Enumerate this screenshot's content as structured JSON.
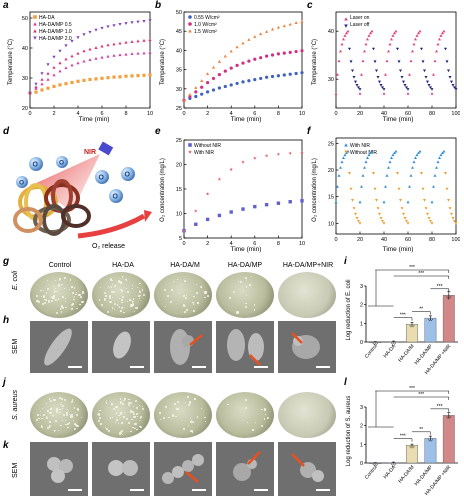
{
  "panel_labels": [
    "a",
    "b",
    "c",
    "d",
    "e",
    "f",
    "g",
    "h",
    "i",
    "j",
    "k",
    "l"
  ],
  "panel_a": {
    "ylabel": "Temperature (°C)",
    "xlabel": "Time (min)",
    "legend": [
      "HA-DA",
      "HA-DA/MP 0.5",
      "HA-DA/MP 1.0",
      "HA-DA/MP 2.0"
    ],
    "yticks": [
      "20",
      "30",
      "40",
      "50"
    ],
    "xticks": [
      "0",
      "2",
      "4",
      "6",
      "8",
      "10"
    ]
  },
  "panel_b": {
    "ylabel": "Temperature (°C)",
    "xlabel": "Time (min)",
    "legend": [
      "0.55 W/cm²",
      "1.0 W/cm²",
      "1.5 W/cm²"
    ],
    "yticks": [
      "25",
      "30",
      "35",
      "40",
      "45",
      "50"
    ],
    "xticks": [
      "0",
      "2",
      "4",
      "6",
      "8",
      "10"
    ]
  },
  "panel_c": {
    "ylabel": "Temperature (°C)",
    "xlabel": "Time (min)",
    "legend": [
      "Laser on",
      "Laser off"
    ],
    "yticks": [
      "30",
      "40"
    ],
    "xticks": [
      "0",
      "20",
      "40",
      "60",
      "80",
      "100"
    ]
  },
  "panel_d": {
    "nir": "NIR",
    "o2": "O",
    "o2_sub": "2",
    "release": "O₂ release"
  },
  "panel_e": {
    "ylabel": "O₂ concentration (mg/L)",
    "xlabel": "Time (min)",
    "legend": [
      "Without NIR",
      "With NIR"
    ],
    "yticks": [
      "5",
      "10",
      "15",
      "20",
      "25"
    ],
    "xticks": [
      "0",
      "2",
      "4",
      "6",
      "8",
      "10"
    ]
  },
  "panel_f": {
    "ylabel": "O₂ concentration (mg/L)",
    "xlabel": "Time (min)",
    "legend": [
      "With NIR",
      "Without NIR"
    ],
    "yticks": [
      "10",
      "15",
      "20",
      "25"
    ],
    "xticks": [
      "0",
      "20",
      "40",
      "60",
      "80",
      "100"
    ]
  },
  "columns": [
    "Control",
    "HA-DA",
    "HA-DA/M",
    "HA-DA/MP",
    "HA-DA/MP+NIR"
  ],
  "row_ecoli": "E. coli",
  "row_saureus": "S. aureus",
  "row_sem": "SEM",
  "panel_i": {
    "ylabel": "Log reduction of E. coli",
    "categories": [
      "Control",
      "HA-DA",
      "HA-DA/M",
      "HA-DA/MP",
      "HA-DA/MP +NIR"
    ],
    "yticks": [
      "0",
      "1",
      "2",
      "3"
    ],
    "sig": [
      "***",
      "***",
      "***",
      "**",
      "***"
    ]
  },
  "panel_l": {
    "ylabel": "Log reduction of S. aureus",
    "categories": [
      "Control",
      "HA-DA",
      "HA-DA/M",
      "HA-DA/MP",
      "HA-DA/MP +NIR"
    ],
    "yticks": [
      "0",
      "1",
      "2",
      "3"
    ],
    "sig": [
      "***",
      "***",
      "***",
      "**",
      "***"
    ]
  },
  "chart_data": [
    {
      "type": "scatter",
      "panel": "a",
      "xlim": [
        0,
        10
      ],
      "ylim": [
        20,
        52
      ],
      "series": [
        {
          "name": "HA-DA",
          "color": "#f0a040",
          "x": [
            0,
            0.5,
            1,
            1.5,
            2,
            2.5,
            3,
            3.5,
            4,
            4.5,
            5,
            5.5,
            6,
            6.5,
            7,
            7.5,
            8,
            8.5,
            9,
            9.5,
            10
          ],
          "y": [
            25,
            25.3,
            26,
            26.6,
            27.2,
            27.7,
            28.1,
            28.5,
            28.9,
            29.2,
            29.5,
            29.7,
            29.9,
            30.1,
            30.3,
            30.4,
            30.6,
            30.7,
            30.8,
            30.9,
            31
          ]
        },
        {
          "name": "HA-DA/MP 0.5",
          "color": "#d040a0",
          "x": [
            0,
            0.5,
            1,
            1.5,
            2,
            2.5,
            3,
            3.5,
            4,
            4.5,
            5,
            5.5,
            6,
            6.5,
            7,
            7.5,
            8,
            8.5,
            9,
            9.5,
            10
          ],
          "y": [
            25,
            26.5,
            28,
            29.5,
            31,
            32.3,
            33.4,
            34.3,
            35,
            35.6,
            36.1,
            36.5,
            36.9,
            37.2,
            37.5,
            37.7,
            37.9,
            38.1,
            38.2,
            38.3,
            38.5
          ]
        },
        {
          "name": "HA-DA/MP 1.0",
          "color": "#e03070",
          "x": [
            0,
            0.5,
            1,
            1.5,
            2,
            2.5,
            3,
            3.5,
            4,
            4.5,
            5,
            5.5,
            6,
            6.5,
            7,
            7.5,
            8,
            8.5,
            9,
            9.5,
            10
          ],
          "y": [
            25,
            27,
            29.5,
            31.5,
            33.5,
            35,
            36.3,
            37.3,
            38.2,
            39,
            39.6,
            40.1,
            40.6,
            41,
            41.3,
            41.6,
            41.9,
            42.1,
            42.3,
            42.5,
            42.7
          ]
        },
        {
          "name": "HA-DA/MP 2.0",
          "color": "#8040c0",
          "x": [
            0,
            0.5,
            1,
            1.5,
            2,
            2.5,
            3,
            3.5,
            4,
            4.5,
            5,
            5.5,
            6,
            6.5,
            7,
            7.5,
            8,
            8.5,
            9,
            9.5,
            10
          ],
          "y": [
            25,
            28,
            31.5,
            34.5,
            37,
            39,
            40.8,
            42.3,
            43.5,
            44.5,
            45.3,
            46,
            46.6,
            47.1,
            47.5,
            47.9,
            48.2,
            48.5,
            48.7,
            48.9,
            49.1
          ]
        }
      ]
    },
    {
      "type": "scatter",
      "panel": "b",
      "xlim": [
        0,
        10
      ],
      "ylim": [
        25,
        50
      ],
      "series": [
        {
          "name": "0.55 W/cm²",
          "color": "#4060c0",
          "x": [
            0,
            0.5,
            1,
            1.5,
            2,
            2.5,
            3,
            3.5,
            4,
            4.5,
            5,
            5.5,
            6,
            6.5,
            7,
            7.5,
            8,
            8.5,
            9,
            9.5,
            10
          ],
          "y": [
            27,
            27.5,
            28,
            28.6,
            29.2,
            29.7,
            30.2,
            30.6,
            31,
            31.4,
            31.8,
            32.1,
            32.4,
            32.7,
            33,
            33.2,
            33.4,
            33.6,
            33.8,
            34,
            34.2
          ]
        },
        {
          "name": "1.0 W/cm²",
          "color": "#d03080",
          "x": [
            0,
            0.5,
            1,
            1.5,
            2,
            2.5,
            3,
            3.5,
            4,
            4.5,
            5,
            5.5,
            6,
            6.5,
            7,
            7.5,
            8,
            8.5,
            9,
            9.5,
            10
          ],
          "y": [
            27,
            28,
            29.2,
            30.4,
            31.6,
            32.7,
            33.7,
            34.6,
            35.4,
            36.1,
            36.7,
            37.2,
            37.7,
            38.1,
            38.5,
            38.8,
            39.1,
            39.3,
            39.5,
            39.7,
            39.9
          ]
        },
        {
          "name": "1.5 W/cm²",
          "color": "#f08040",
          "x": [
            0,
            0.5,
            1,
            1.5,
            2,
            2.5,
            3,
            3.5,
            4,
            4.5,
            5,
            5.5,
            6,
            6.5,
            7,
            7.5,
            8,
            8.5,
            9,
            9.5,
            10
          ],
          "y": [
            27,
            28.5,
            30.3,
            32.1,
            33.9,
            35.6,
            37.1,
            38.5,
            39.8,
            40.9,
            41.9,
            42.8,
            43.6,
            44.3,
            44.9,
            45.5,
            46,
            46.4,
            46.8,
            47.2,
            47.5
          ]
        }
      ]
    },
    {
      "type": "scatter",
      "panel": "c",
      "xlim": [
        0,
        100
      ],
      "ylim": [
        24,
        44
      ],
      "series": [
        {
          "name": "Laser on",
          "color": "#e04080",
          "cycles": 5,
          "peak": 40,
          "base": 27
        },
        {
          "name": "Laser off",
          "color": "#202080",
          "cycles": 5,
          "peak": 40,
          "base": 27
        }
      ]
    },
    {
      "type": "scatter",
      "panel": "e",
      "xlim": [
        0,
        10
      ],
      "ylim": [
        5,
        25
      ],
      "series": [
        {
          "name": "Without NIR",
          "color": "#6060d0",
          "x": [
            0,
            1,
            2,
            3,
            4,
            5,
            6,
            7,
            8,
            9,
            10
          ],
          "y": [
            6.5,
            7.8,
            8.8,
            9.6,
            10.3,
            10.9,
            11.4,
            11.8,
            12.1,
            12.4,
            12.6
          ]
        },
        {
          "name": "With NIR",
          "color": "#e06070",
          "x": [
            0,
            1,
            2,
            3,
            4,
            5,
            6,
            7,
            8,
            9,
            10
          ],
          "y": [
            6.5,
            10.5,
            14,
            17,
            19,
            20.5,
            21.3,
            21.8,
            22.1,
            22.3,
            22.4
          ]
        }
      ]
    },
    {
      "type": "scatter",
      "panel": "f",
      "xlim": [
        0,
        100
      ],
      "ylim": [
        8,
        26
      ],
      "series": [
        {
          "name": "With NIR",
          "color": "#3090d0",
          "cycles": 5,
          "peak": 23.5,
          "base": 14
        },
        {
          "name": "Without NIR",
          "color": "#f0a030",
          "cycles": 5,
          "peak": 23.5,
          "base": 9
        }
      ]
    },
    {
      "type": "bar",
      "panel": "i",
      "ylim": [
        0,
        3
      ],
      "categories": [
        "Control",
        "HA-DA",
        "HA-DA/M",
        "HA-DA/MP",
        "HA-DA/MP +NIR"
      ],
      "values": [
        0,
        0.02,
        0.95,
        1.28,
        2.5
      ],
      "errors": [
        0.02,
        0.03,
        0.1,
        0.12,
        0.22
      ],
      "colors": [
        "#a0a8b8",
        "#b8a8d8",
        "#e8dcb0",
        "#9cc0e8",
        "#d08888"
      ]
    },
    {
      "type": "bar",
      "panel": "l",
      "ylim": [
        0,
        3
      ],
      "categories": [
        "Control",
        "HA-DA",
        "HA-DA/M",
        "HA-DA/MP",
        "HA-DA/MP +NIR"
      ],
      "values": [
        0,
        0.02,
        0.95,
        1.32,
        2.55
      ],
      "errors": [
        0.02,
        0.03,
        0.06,
        0.12,
        0.15
      ],
      "colors": [
        "#a0a8b8",
        "#b8a8d8",
        "#e8dcb0",
        "#9cc0e8",
        "#d08888"
      ]
    }
  ]
}
